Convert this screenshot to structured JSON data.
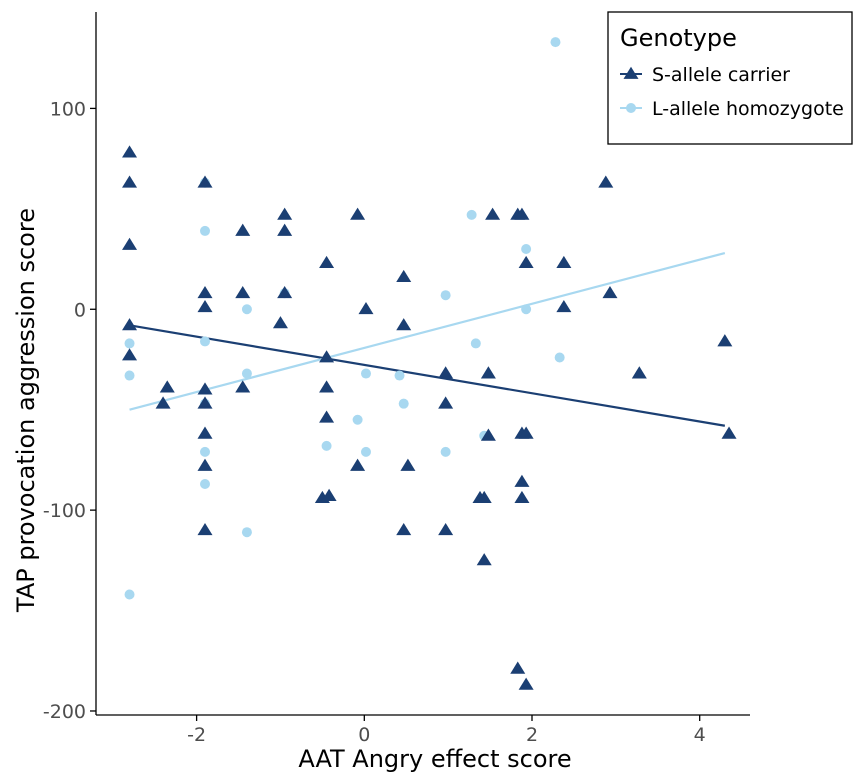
{
  "chart_data": {
    "type": "scatter",
    "title": "",
    "xlabel": "AAT Angry effect score",
    "ylabel": "TAP provocation aggression score",
    "xlim": [
      -3.2,
      4.6
    ],
    "ylim": [
      -202,
      148
    ],
    "xticks": [
      -2,
      0,
      2,
      4
    ],
    "yticks": [
      -200,
      -100,
      0,
      100
    ],
    "grid": false,
    "legend": {
      "title": "Genotype",
      "position": "top-right"
    },
    "series": [
      {
        "name": "S-allele carrier",
        "marker": "triangle",
        "color": "#1b3f73",
        "points": [
          [
            -2.8,
            78
          ],
          [
            -2.8,
            63
          ],
          [
            -2.8,
            32
          ],
          [
            -2.8,
            -8
          ],
          [
            -2.8,
            -23
          ],
          [
            -2.35,
            -39
          ],
          [
            -2.4,
            -47
          ],
          [
            -1.9,
            63
          ],
          [
            -1.9,
            8
          ],
          [
            -1.9,
            1
          ],
          [
            -1.9,
            -40
          ],
          [
            -1.9,
            -47
          ],
          [
            -1.9,
            -62
          ],
          [
            -1.9,
            -78
          ],
          [
            -1.9,
            -110
          ],
          [
            -1.45,
            39
          ],
          [
            -1.45,
            8
          ],
          [
            -1.45,
            -39
          ],
          [
            -0.95,
            47
          ],
          [
            -0.95,
            39
          ],
          [
            -0.95,
            8
          ],
          [
            -1.0,
            -7
          ],
          [
            -0.45,
            23
          ],
          [
            -0.45,
            -24
          ],
          [
            -0.45,
            -39
          ],
          [
            -0.45,
            -54
          ],
          [
            -0.5,
            -94
          ],
          [
            -0.42,
            -93
          ],
          [
            -0.08,
            47
          ],
          [
            0.02,
            0
          ],
          [
            -0.08,
            -78
          ],
          [
            0.47,
            16
          ],
          [
            0.47,
            -8
          ],
          [
            0.47,
            -110
          ],
          [
            0.52,
            -78
          ],
          [
            0.97,
            -32
          ],
          [
            0.97,
            -47
          ],
          [
            0.97,
            -110
          ],
          [
            1.38,
            -94
          ],
          [
            1.43,
            -94
          ],
          [
            1.43,
            -125
          ],
          [
            1.48,
            -32
          ],
          [
            1.48,
            -63
          ],
          [
            1.53,
            47
          ],
          [
            1.83,
            47
          ],
          [
            1.88,
            47
          ],
          [
            1.93,
            23
          ],
          [
            1.88,
            -86
          ],
          [
            1.88,
            -94
          ],
          [
            1.88,
            -62
          ],
          [
            1.93,
            -62
          ],
          [
            1.83,
            -179
          ],
          [
            1.93,
            -187
          ],
          [
            2.38,
            23
          ],
          [
            2.38,
            1
          ],
          [
            2.88,
            63
          ],
          [
            2.93,
            8
          ],
          [
            3.28,
            -32
          ],
          [
            4.3,
            -16
          ],
          [
            4.35,
            -62
          ]
        ]
      },
      {
        "name": "L-allele homozygote",
        "marker": "circle",
        "color": "#a8d8f0",
        "points": [
          [
            -2.8,
            -17
          ],
          [
            -2.8,
            -33
          ],
          [
            -2.8,
            -142
          ],
          [
            -1.9,
            63
          ],
          [
            -1.9,
            39
          ],
          [
            -1.9,
            -16
          ],
          [
            -1.9,
            -47
          ],
          [
            -1.9,
            -71
          ],
          [
            -1.9,
            -87
          ],
          [
            -1.4,
            0
          ],
          [
            -1.4,
            -32
          ],
          [
            -1.4,
            -111
          ],
          [
            -0.95,
            8
          ],
          [
            -0.45,
            -68
          ],
          [
            -0.08,
            -55
          ],
          [
            0.02,
            -32
          ],
          [
            0.02,
            -71
          ],
          [
            0.42,
            -33
          ],
          [
            0.47,
            -47
          ],
          [
            0.97,
            7
          ],
          [
            0.97,
            -71
          ],
          [
            1.28,
            47
          ],
          [
            1.33,
            -17
          ],
          [
            1.43,
            -63
          ],
          [
            1.93,
            30
          ],
          [
            1.93,
            0
          ],
          [
            2.28,
            133
          ],
          [
            2.33,
            -24
          ]
        ]
      }
    ],
    "trend_lines": [
      {
        "series": "S-allele carrier",
        "color": "#1b3f73",
        "x": [
          -2.8,
          4.3
        ],
        "y": [
          -8,
          -58
        ]
      },
      {
        "series": "L-allele homozygote",
        "color": "#a8d8f0",
        "x": [
          -2.8,
          4.3
        ],
        "y": [
          -50,
          28
        ]
      }
    ]
  }
}
